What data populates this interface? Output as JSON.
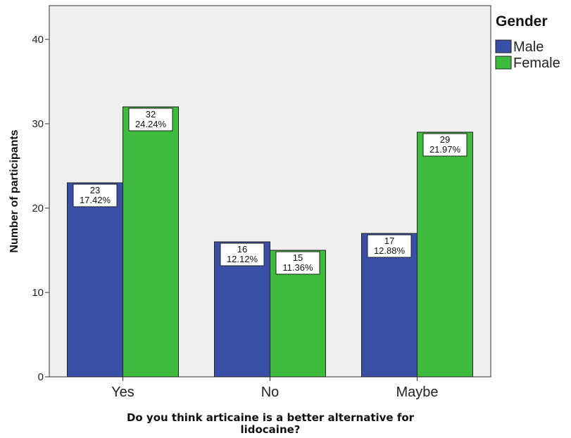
{
  "chart_data": {
    "type": "bar",
    "categories": [
      "Yes",
      "No",
      "Maybe"
    ],
    "series": [
      {
        "name": "Male",
        "color": "#3a4fa6",
        "values": [
          23,
          16,
          17
        ],
        "percent_labels": [
          "17.42%",
          "12.12%",
          "12.88%"
        ]
      },
      {
        "name": "Female",
        "color": "#3dbb3d",
        "values": [
          32,
          15,
          29
        ],
        "percent_labels": [
          "24.24%",
          "11.36%",
          "21.97%"
        ]
      }
    ],
    "title": "",
    "xlabel": "Do you think articaine is a better alternative for lidocaine?",
    "xlabel_lines": [
      "Do you think articaine is a better alternative for",
      "lidocaine?"
    ],
    "ylabel": "Number of participants",
    "ylim": [
      0,
      44
    ],
    "yticks": [
      0,
      10,
      20,
      30,
      40
    ],
    "legend": {
      "title": "Gender",
      "placement": "right"
    },
    "plot_background": "#efefef",
    "grid": false
  }
}
